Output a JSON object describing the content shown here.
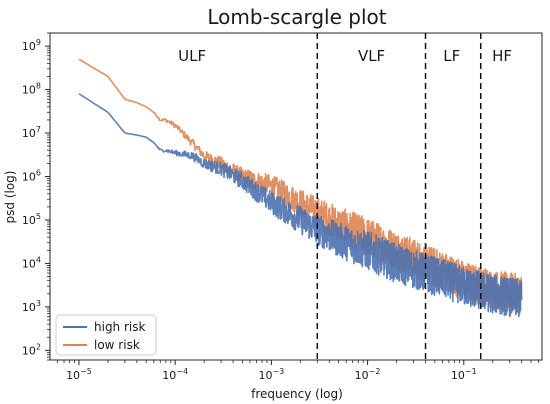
{
  "chart_data": {
    "type": "line",
    "title": "Lomb-scargle plot",
    "xlabel": "frequency (log)",
    "ylabel": "psd (log)",
    "x_scale": "log",
    "y_scale": "log",
    "xlim": [
      5e-06,
      0.65
    ],
    "ylim": [
      60,
      2000000000.0
    ],
    "x_ticks": [
      {
        "base": "10",
        "exp": "−5",
        "value": 1e-05
      },
      {
        "base": "10",
        "exp": "−4",
        "value": 0.0001
      },
      {
        "base": "10",
        "exp": "−3",
        "value": 0.001
      },
      {
        "base": "10",
        "exp": "−2",
        "value": 0.01
      },
      {
        "base": "10",
        "exp": "−1",
        "value": 0.1
      }
    ],
    "y_ticks": [
      {
        "base": "10",
        "exp": "2",
        "value": 100.0
      },
      {
        "base": "10",
        "exp": "3",
        "value": 1000.0
      },
      {
        "base": "10",
        "exp": "4",
        "value": 10000.0
      },
      {
        "base": "10",
        "exp": "5",
        "value": 100000.0
      },
      {
        "base": "10",
        "exp": "6",
        "value": 1000000.0
      },
      {
        "base": "10",
        "exp": "7",
        "value": 10000000.0
      },
      {
        "base": "10",
        "exp": "8",
        "value": 100000000.0
      },
      {
        "base": "10",
        "exp": "9",
        "value": 1000000000.0
      }
    ],
    "vlines": [
      0.003,
      0.04,
      0.15
    ],
    "bands": [
      {
        "label": "ULF",
        "x": 0.00015
      },
      {
        "label": "VLF",
        "x": 0.011
      },
      {
        "label": "LF",
        "x": 0.075
      },
      {
        "label": "HF",
        "x": 0.25
      }
    ],
    "legend_position": "lower-left",
    "grid": false,
    "series": [
      {
        "name": "high risk",
        "color": "#4c72b0",
        "x": [
          1e-05,
          2e-05,
          3e-05,
          4e-05,
          5e-05,
          6e-05,
          7e-05,
          8e-05,
          0.0001,
          0.00015,
          0.0002,
          0.0003,
          0.0005,
          0.001,
          0.002,
          0.003,
          0.005,
          0.01,
          0.02,
          0.04,
          0.07,
          0.1,
          0.2,
          0.4
        ],
        "values": [
          80000000.0,
          30000000.0,
          10000000.0,
          9000000.0,
          8000000.0,
          6000000.0,
          4000000.0,
          4000000.0,
          3500000.0,
          3000000.0,
          2000000.0,
          1500000.0,
          800000.0,
          250000.0,
          100000.0,
          60000.0,
          35000.0,
          20000.0,
          10000.0,
          6000.0,
          4000.0,
          3000.0,
          2000.0,
          1500.0
        ]
      },
      {
        "name": "low risk",
        "color": "#dd8452",
        "x": [
          1e-05,
          2e-05,
          3e-05,
          4e-05,
          5e-05,
          6e-05,
          7e-05,
          8e-05,
          0.0001,
          0.00015,
          0.0002,
          0.0003,
          0.0005,
          0.001,
          0.002,
          0.003,
          0.005,
          0.01,
          0.02,
          0.04,
          0.07,
          0.1,
          0.2,
          0.4
        ],
        "values": [
          500000000.0,
          200000000.0,
          60000000.0,
          50000000.0,
          40000000.0,
          30000000.0,
          20000000.0,
          20000000.0,
          15000000.0,
          6000000.0,
          3000000.0,
          2000000.0,
          1000000.0,
          600000.0,
          250000.0,
          150000.0,
          80000.0,
          40000.0,
          20000.0,
          10000.0,
          6000.0,
          4000.0,
          2500.0,
          2000.0
        ]
      }
    ]
  }
}
